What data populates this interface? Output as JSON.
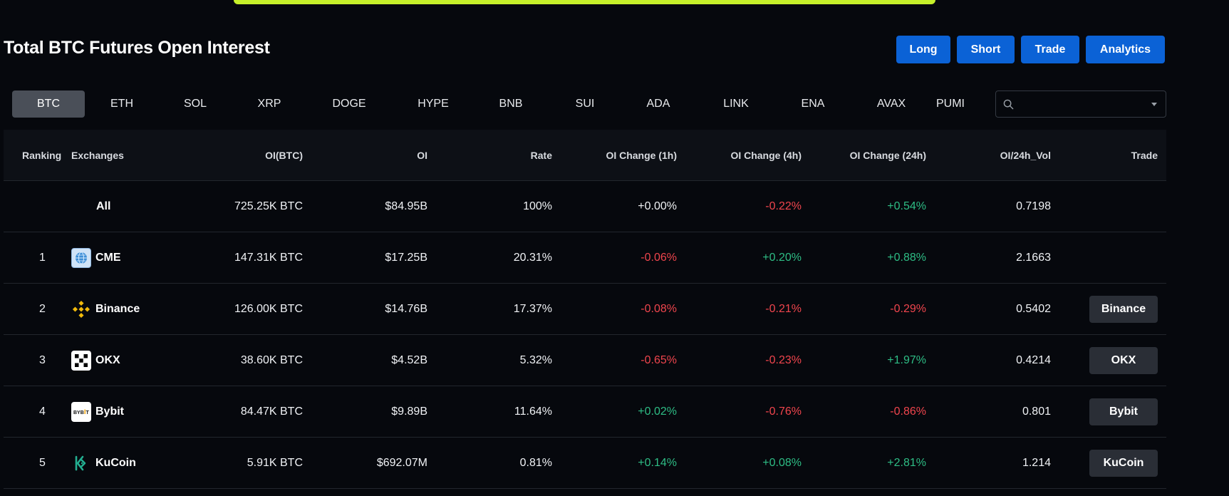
{
  "page": {
    "title": "Total BTC Futures Open Interest",
    "accent_color": "#c6f02a"
  },
  "actions": [
    {
      "label": "Long"
    },
    {
      "label": "Short"
    },
    {
      "label": "Trade"
    },
    {
      "label": "Analytics"
    }
  ],
  "coin_tabs": [
    {
      "label": "BTC",
      "active": true
    },
    {
      "label": "ETH"
    },
    {
      "label": "SOL"
    },
    {
      "label": "XRP"
    },
    {
      "label": "DOGE"
    },
    {
      "label": "HYPE"
    },
    {
      "label": "BNB"
    },
    {
      "label": "SUI"
    },
    {
      "label": "ADA"
    },
    {
      "label": "LINK"
    },
    {
      "label": "ENA"
    },
    {
      "label": "AVAX"
    },
    {
      "label": "PUMI"
    }
  ],
  "search": {
    "value": "",
    "icon": "search-icon"
  },
  "table": {
    "headers": {
      "ranking": "Ranking",
      "exchanges": "Exchanges",
      "oi_btc": "OI(BTC)",
      "oi": "OI",
      "rate": "Rate",
      "change_1h": "OI Change (1h)",
      "change_4h": "OI Change (4h)",
      "change_24h": "OI Change (24h)",
      "oi_vol": "OI/24h_Vol",
      "trade": "Trade"
    },
    "summary": {
      "label": "All",
      "oi_btc": "725.25K BTC",
      "oi": "$84.95B",
      "rate": "100%",
      "change_1h": "+0.00%",
      "change_4h": "-0.22%",
      "change_24h": "+0.54%",
      "oi_vol": "0.7198"
    },
    "rows": [
      {
        "rank": "1",
        "name": "CME",
        "icon": "cme-logo-icon",
        "oi_btc": "147.31K BTC",
        "oi": "$17.25B",
        "rate": "20.31%",
        "change_1h": "-0.06%",
        "change_4h": "+0.20%",
        "change_24h": "+0.88%",
        "oi_vol": "2.1663",
        "trade": ""
      },
      {
        "rank": "2",
        "name": "Binance",
        "icon": "binance-logo-icon",
        "oi_btc": "126.00K BTC",
        "oi": "$14.76B",
        "rate": "17.37%",
        "change_1h": "-0.08%",
        "change_4h": "-0.21%",
        "change_24h": "-0.29%",
        "oi_vol": "0.5402",
        "trade": "Binance"
      },
      {
        "rank": "3",
        "name": "OKX",
        "icon": "okx-logo-icon",
        "oi_btc": "38.60K BTC",
        "oi": "$4.52B",
        "rate": "5.32%",
        "change_1h": "-0.65%",
        "change_4h": "-0.23%",
        "change_24h": "+1.97%",
        "oi_vol": "0.4214",
        "trade": "OKX"
      },
      {
        "rank": "4",
        "name": "Bybit",
        "icon": "bybit-logo-icon",
        "oi_btc": "84.47K BTC",
        "oi": "$9.89B",
        "rate": "11.64%",
        "change_1h": "+0.02%",
        "change_4h": "-0.76%",
        "change_24h": "-0.86%",
        "oi_vol": "0.801",
        "trade": "Bybit"
      },
      {
        "rank": "5",
        "name": "KuCoin",
        "icon": "kucoin-logo-icon",
        "oi_btc": "5.91K BTC",
        "oi": "$692.07M",
        "rate": "0.81%",
        "change_1h": "+0.14%",
        "change_4h": "+0.08%",
        "change_24h": "+2.81%",
        "oi_vol": "1.214",
        "trade": "KuCoin"
      }
    ]
  },
  "colors": {
    "positive": "#2ebd85",
    "negative": "#f0454d",
    "primary_button": "#0b62d6"
  }
}
